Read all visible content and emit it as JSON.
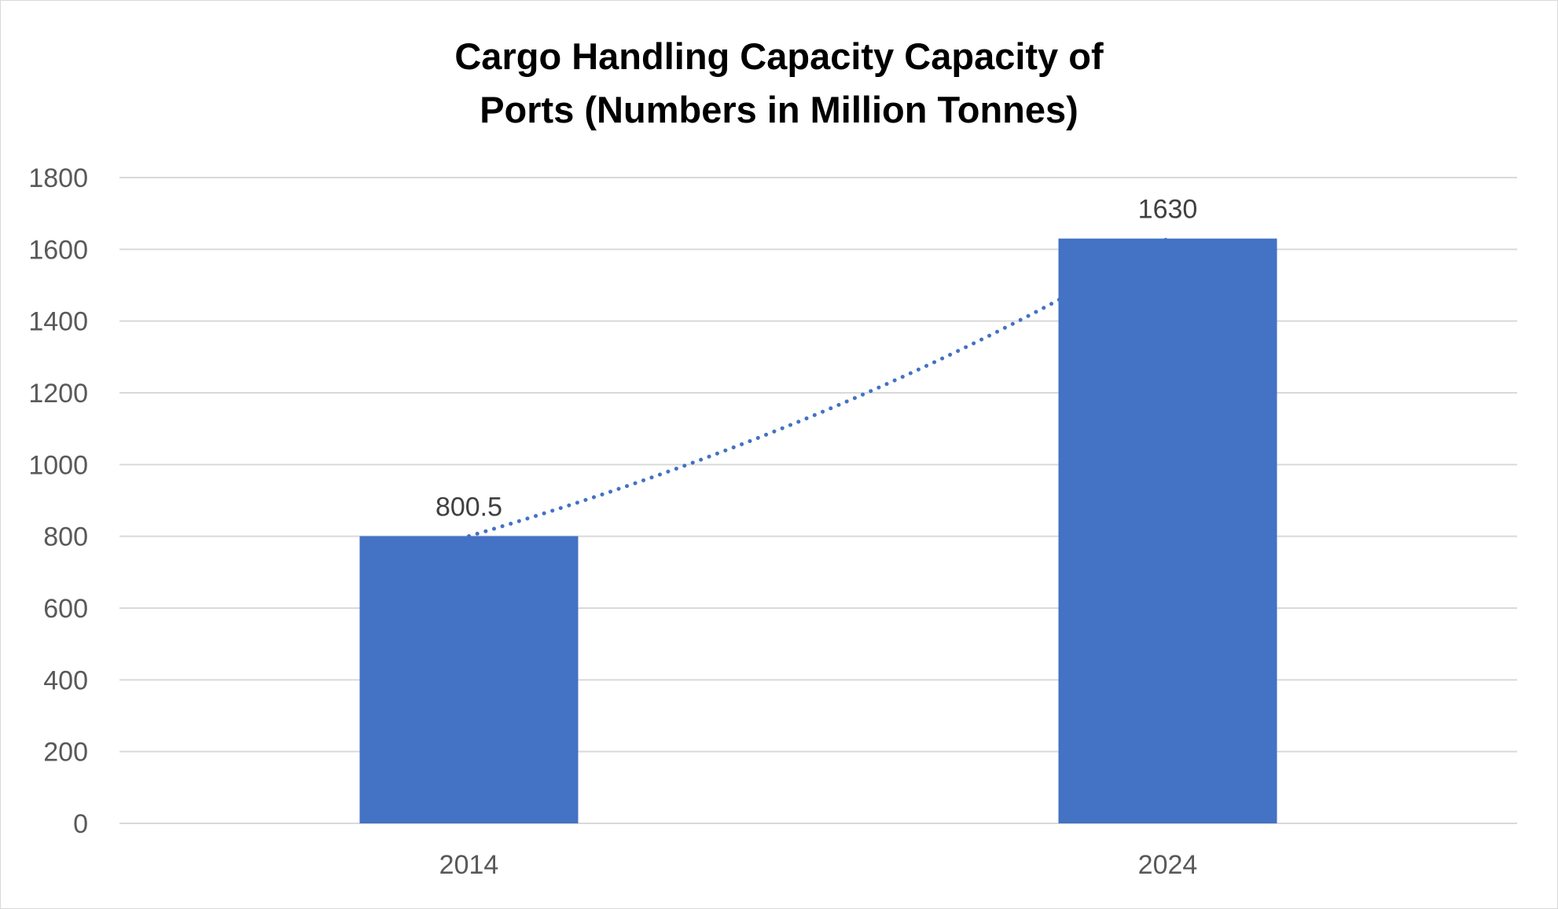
{
  "chart_data": {
    "type": "bar",
    "title": "Cargo Handling Capacity Capacity of Ports (Numbers in Million Tonnes)",
    "xlabel": "",
    "ylabel": "",
    "categories": [
      "2014",
      "2024"
    ],
    "series": [
      {
        "values": [
          800.5,
          1630
        ],
        "color": "#4472C4",
        "data_labels": [
          "800.5",
          "1630"
        ]
      }
    ],
    "trendline": {
      "style": "dotted",
      "color": "#4472C4",
      "type": "exponential"
    },
    "ylim": [
      0,
      1800
    ],
    "yticks": [
      0,
      200,
      400,
      600,
      800,
      1000,
      1200,
      1400,
      1600,
      1800
    ],
    "grid": true,
    "legend": "none",
    "colors": {
      "bar": "#4472C4",
      "grid": "#d9d9d9",
      "tick_text": "#595959",
      "label_text": "#404040"
    }
  }
}
